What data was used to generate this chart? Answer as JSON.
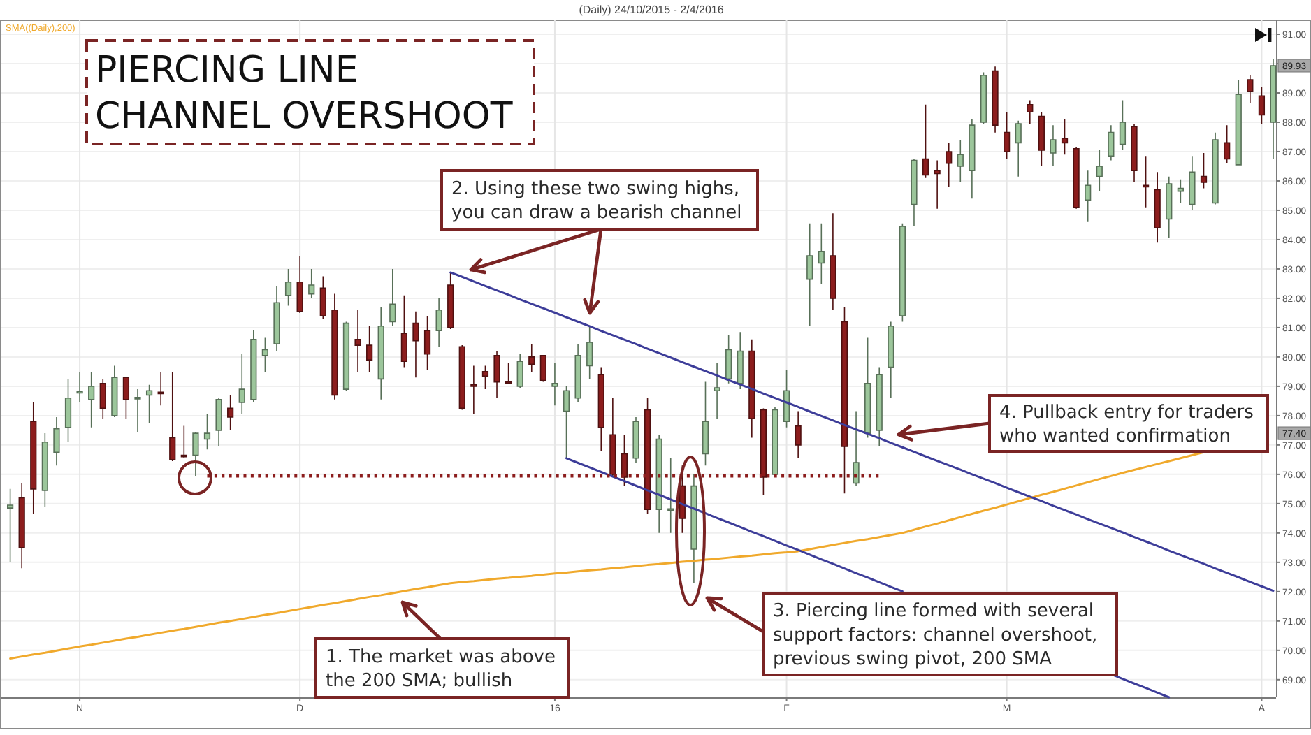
{
  "chart_data": {
    "type": "candlestick",
    "title": "PIERCING LINE\nCHANNEL OVERSHOOT",
    "subtitle": "(Daily) 24/10/2015 - 2/4/2016",
    "categories": [
      null,
      null,
      null,
      null,
      null,
      null,
      "N",
      null,
      null,
      null,
      null,
      null,
      null,
      null,
      null,
      null,
      null,
      null,
      null,
      null,
      null,
      null,
      null,
      null,
      null,
      "D",
      null,
      null,
      null,
      null,
      null,
      null,
      null,
      null,
      null,
      null,
      null,
      null,
      null,
      null,
      null,
      null,
      null,
      null,
      null,
      null,
      null,
      "16",
      null,
      null,
      null,
      null,
      null,
      null,
      null,
      null,
      null,
      null,
      null,
      null,
      null,
      null,
      null,
      null,
      null,
      null,
      null,
      "F",
      null,
      null,
      null,
      null,
      null,
      null,
      null,
      null,
      null,
      null,
      null,
      null,
      null,
      null,
      null,
      null,
      null,
      null,
      "M",
      null,
      null,
      null,
      null,
      null,
      null,
      null,
      null,
      null,
      null,
      null,
      null,
      null,
      null,
      null,
      null,
      null,
      null,
      null,
      null,
      null,
      "A",
      null
    ],
    "ohlc": [
      [
        74.85,
        75.5,
        73.0,
        74.95
      ],
      [
        75.2,
        75.7,
        72.8,
        73.5
      ],
      [
        77.8,
        78.45,
        74.65,
        75.5
      ],
      [
        75.45,
        77.4,
        74.9,
        77.1
      ],
      [
        76.75,
        77.95,
        76.3,
        77.55
      ],
      [
        77.6,
        79.25,
        77.1,
        78.6
      ],
      [
        78.8,
        79.5,
        78.45,
        78.82
      ],
      [
        78.55,
        79.5,
        77.6,
        79.0
      ],
      [
        79.1,
        79.25,
        77.9,
        78.25
      ],
      [
        78.0,
        79.7,
        77.95,
        79.3
      ],
      [
        79.3,
        79.3,
        77.9,
        78.55
      ],
      [
        78.6,
        78.9,
        77.45,
        78.62
      ],
      [
        78.7,
        79.05,
        77.75,
        78.85
      ],
      [
        78.8,
        79.5,
        78.35,
        78.75
      ],
      [
        77.25,
        79.5,
        76.45,
        76.5
      ],
      [
        76.65,
        77.65,
        76.55,
        76.6
      ],
      [
        76.65,
        77.45,
        75.95,
        77.4
      ],
      [
        77.2,
        78.05,
        76.85,
        77.4
      ],
      [
        77.5,
        78.6,
        76.95,
        78.55
      ],
      [
        78.25,
        78.7,
        77.5,
        77.95
      ],
      [
        78.45,
        80.1,
        78.05,
        78.9
      ],
      [
        78.55,
        80.9,
        78.45,
        80.6
      ],
      [
        80.05,
        80.65,
        79.5,
        80.25
      ],
      [
        80.45,
        82.4,
        80.2,
        81.85
      ],
      [
        82.1,
        83.0,
        81.75,
        82.55
      ],
      [
        82.55,
        83.45,
        81.5,
        81.55
      ],
      [
        82.15,
        83.0,
        82.0,
        82.45
      ],
      [
        82.35,
        82.75,
        81.3,
        81.4
      ],
      [
        81.6,
        82.15,
        78.55,
        78.7
      ],
      [
        78.9,
        81.2,
        78.85,
        81.15
      ],
      [
        80.6,
        81.6,
        79.5,
        80.4
      ],
      [
        80.4,
        81.05,
        79.5,
        79.9
      ],
      [
        79.25,
        81.7,
        78.55,
        81.05
      ],
      [
        81.2,
        83.0,
        81.05,
        81.8
      ],
      [
        80.8,
        82.1,
        79.65,
        79.85
      ],
      [
        81.15,
        81.55,
        79.3,
        80.55
      ],
      [
        80.9,
        81.4,
        79.55,
        80.1
      ],
      [
        80.9,
        82.0,
        80.35,
        81.6
      ],
      [
        82.45,
        82.88,
        80.95,
        81.0
      ],
      [
        80.35,
        80.4,
        78.2,
        78.25
      ],
      [
        79.05,
        79.7,
        78.05,
        79.0
      ],
      [
        79.5,
        79.7,
        78.9,
        79.35
      ],
      [
        80.05,
        80.2,
        78.6,
        79.15
      ],
      [
        79.15,
        79.8,
        79.1,
        79.12
      ],
      [
        79.0,
        80.1,
        78.95,
        79.85
      ],
      [
        80.0,
        80.45,
        79.5,
        79.75
      ],
      [
        80.05,
        80.05,
        79.15,
        79.2
      ],
      [
        79.0,
        79.8,
        78.35,
        79.1
      ],
      [
        78.15,
        79.0,
        76.55,
        78.85
      ],
      [
        78.6,
        80.45,
        78.45,
        80.05
      ],
      [
        79.7,
        81.05,
        79.25,
        80.5
      ],
      [
        79.4,
        79.65,
        76.8,
        77.6
      ],
      [
        77.35,
        78.6,
        75.9,
        76.0
      ],
      [
        76.7,
        77.35,
        75.6,
        75.9
      ],
      [
        76.55,
        77.95,
        76.4,
        77.8
      ],
      [
        78.2,
        78.6,
        74.65,
        74.8
      ],
      [
        74.8,
        77.35,
        74.0,
        77.2
      ],
      [
        74.8,
        76.55,
        74.0,
        74.82
      ],
      [
        75.6,
        76.3,
        74.0,
        74.5
      ],
      [
        73.45,
        76.0,
        72.3,
        75.6
      ],
      [
        76.7,
        79.15,
        76.3,
        77.8
      ],
      [
        78.85,
        79.8,
        77.9,
        78.95
      ],
      [
        79.25,
        80.75,
        79.1,
        80.25
      ],
      [
        79.1,
        80.85,
        78.9,
        80.2
      ],
      [
        80.2,
        80.6,
        77.25,
        77.9
      ],
      [
        78.2,
        78.25,
        75.3,
        75.9
      ],
      [
        76.0,
        78.3,
        75.9,
        78.2
      ],
      [
        77.8,
        79.55,
        77.6,
        78.85
      ],
      [
        77.65,
        78.15,
        76.55,
        77.0
      ],
      [
        82.65,
        84.55,
        81.05,
        83.45
      ],
      [
        83.2,
        84.55,
        82.5,
        83.6
      ],
      [
        83.45,
        84.9,
        81.6,
        82.0
      ],
      [
        81.2,
        81.7,
        75.35,
        76.95
      ],
      [
        75.7,
        78.15,
        75.6,
        76.4
      ],
      [
        77.4,
        80.65,
        77.25,
        79.1
      ],
      [
        77.5,
        79.65,
        76.95,
        79.4
      ],
      [
        79.65,
        81.2,
        78.6,
        81.05
      ],
      [
        81.4,
        84.55,
        81.2,
        84.45
      ],
      [
        85.2,
        86.75,
        84.45,
        86.7
      ],
      [
        86.75,
        88.6,
        86.1,
        86.2
      ],
      [
        86.35,
        86.7,
        85.05,
        86.25
      ],
      [
        87.0,
        87.3,
        85.8,
        86.6
      ],
      [
        86.5,
        87.4,
        85.95,
        86.9
      ],
      [
        86.35,
        88.1,
        85.4,
        87.9
      ],
      [
        88.0,
        89.7,
        87.95,
        89.6
      ],
      [
        89.75,
        89.9,
        87.65,
        87.9
      ],
      [
        87.65,
        88.35,
        86.75,
        87.0
      ],
      [
        87.3,
        88.05,
        86.15,
        87.95
      ],
      [
        88.6,
        88.75,
        87.95,
        88.35
      ],
      [
        88.2,
        88.35,
        86.5,
        87.05
      ],
      [
        86.95,
        87.9,
        86.5,
        87.4
      ],
      [
        87.45,
        88.1,
        86.9,
        87.3
      ],
      [
        87.1,
        87.15,
        85.05,
        85.1
      ],
      [
        85.35,
        86.35,
        84.6,
        85.85
      ],
      [
        86.15,
        87.05,
        85.65,
        86.5
      ],
      [
        86.85,
        87.9,
        86.7,
        87.65
      ],
      [
        87.25,
        88.75,
        87.05,
        88.0
      ],
      [
        87.85,
        87.95,
        85.95,
        86.35
      ],
      [
        85.85,
        86.85,
        85.1,
        85.8
      ],
      [
        85.7,
        86.3,
        83.9,
        84.4
      ],
      [
        84.7,
        86.15,
        84.05,
        85.9
      ],
      [
        85.65,
        86.05,
        85.25,
        85.75
      ],
      [
        85.2,
        86.85,
        85.0,
        86.3
      ],
      [
        86.15,
        86.95,
        85.75,
        85.95
      ],
      [
        85.25,
        87.65,
        85.2,
        87.4
      ],
      [
        87.3,
        87.9,
        86.6,
        86.75
      ],
      [
        86.55,
        89.45,
        86.55,
        88.95
      ],
      [
        89.45,
        89.6,
        88.65,
        89.05
      ],
      [
        88.9,
        89.2,
        87.95,
        88.25
      ],
      [
        88.0,
        90.15,
        86.75,
        89.93
      ]
    ],
    "colors": [
      "#9cc69b",
      "#8c1d1d",
      "#8c1d1d",
      "#9cc69b",
      "#9cc69b",
      "#9cc69b",
      "#9cc69b",
      "#9cc69b",
      "#8c1d1d",
      "#9cc69b",
      "#8c1d1d",
      "#9cc69b",
      "#9cc69b",
      "#8c1d1d",
      "#8c1d1d",
      "#8c1d1d",
      "#9cc69b",
      "#9cc69b",
      "#9cc69b",
      "#8c1d1d",
      "#9cc69b",
      "#9cc69b",
      "#9cc69b",
      "#9cc69b",
      "#9cc69b",
      "#8c1d1d",
      "#9cc69b",
      "#8c1d1d",
      "#8c1d1d",
      "#9cc69b",
      "#8c1d1d",
      "#8c1d1d",
      "#9cc69b",
      "#9cc69b",
      "#8c1d1d",
      "#8c1d1d",
      "#8c1d1d",
      "#9cc69b",
      "#8c1d1d",
      "#8c1d1d",
      "#8c1d1d",
      "#8c1d1d",
      "#8c1d1d",
      "#8c1d1d",
      "#9cc69b",
      "#8c1d1d",
      "#8c1d1d",
      "#9cc69b",
      "#9cc69b",
      "#9cc69b",
      "#9cc69b",
      "#8c1d1d",
      "#8c1d1d",
      "#8c1d1d",
      "#9cc69b",
      "#8c1d1d",
      "#9cc69b",
      "#9cc69b",
      "#8c1d1d",
      "#9cc69b",
      "#9cc69b",
      "#9cc69b",
      "#9cc69b",
      "#9cc69b",
      "#8c1d1d",
      "#8c1d1d",
      "#9cc69b",
      "#9cc69b",
      "#8c1d1d",
      "#9cc69b",
      "#9cc69b",
      "#8c1d1d",
      "#8c1d1d",
      "#9cc69b",
      "#9cc69b",
      "#9cc69b",
      "#9cc69b",
      "#9cc69b",
      "#9cc69b",
      "#8c1d1d",
      "#8c1d1d",
      "#8c1d1d",
      "#9cc69b",
      "#9cc69b",
      "#9cc69b",
      "#8c1d1d",
      "#8c1d1d",
      "#9cc69b",
      "#8c1d1d",
      "#8c1d1d",
      "#9cc69b",
      "#8c1d1d",
      "#8c1d1d",
      "#9cc69b",
      "#9cc69b",
      "#9cc69b",
      "#9cc69b",
      "#8c1d1d",
      "#8c1d1d",
      "#8c1d1d",
      "#9cc69b",
      "#9cc69b",
      "#9cc69b",
      "#8c1d1d",
      "#9cc69b",
      "#8c1d1d",
      "#9cc69b",
      "#8c1d1d",
      "#8c1d1d",
      "#9cc69b"
    ],
    "series": [
      {
        "name": "SMA((Daily),200)",
        "type": "line",
        "color": "#f0a92c",
        "values": [
          69.72,
          69.79,
          69.86,
          69.92,
          69.99,
          70.06,
          70.13,
          70.19,
          70.26,
          70.33,
          70.4,
          70.46,
          70.53,
          70.6,
          70.67,
          70.73,
          70.8,
          70.87,
          70.94,
          71.0,
          71.07,
          71.14,
          71.21,
          71.27,
          71.34,
          71.41,
          71.48,
          71.55,
          71.61,
          71.68,
          71.75,
          71.82,
          71.88,
          71.95,
          72.02,
          72.09,
          72.15,
          72.22,
          72.29,
          72.33,
          72.36,
          72.4,
          72.44,
          72.47,
          72.51,
          72.54,
          72.58,
          72.62,
          72.65,
          72.69,
          72.73,
          72.76,
          72.8,
          72.83,
          72.87,
          72.91,
          72.94,
          72.98,
          73.02,
          73.05,
          73.09,
          73.12,
          73.16,
          73.2,
          73.23,
          73.27,
          73.31,
          73.34,
          73.38,
          73.45,
          73.52,
          73.59,
          73.66,
          73.73,
          73.79,
          73.86,
          73.93,
          74.0,
          74.11,
          74.22,
          74.32,
          74.43,
          74.54,
          74.65,
          74.76,
          74.86,
          74.97,
          75.08,
          75.19,
          75.3,
          75.4,
          75.51,
          75.62,
          75.73,
          75.84,
          75.94,
          76.05,
          76.15,
          76.25,
          76.35,
          76.45,
          76.55,
          76.65,
          76.75,
          null,
          null,
          null,
          null,
          null,
          null
        ]
      },
      {
        "type": "line",
        "color": "#3d3d99",
        "values": [
          null,
          null,
          null,
          null,
          null,
          null,
          null,
          null,
          null,
          null,
          null,
          null,
          null,
          null,
          null,
          null,
          null,
          null,
          null,
          null,
          null,
          null,
          null,
          null,
          null,
          null,
          null,
          null,
          null,
          null,
          null,
          null,
          null,
          null,
          null,
          null,
          null,
          null,
          82.88,
          82.73,
          82.57,
          82.42,
          82.27,
          82.12,
          81.96,
          81.81,
          81.66,
          81.51,
          81.35,
          81.2,
          81.05,
          80.89,
          80.74,
          80.59,
          80.44,
          80.28,
          80.13,
          79.98,
          79.82,
          79.67,
          79.52,
          79.37,
          79.21,
          79.06,
          78.91,
          78.75,
          78.6,
          78.45,
          78.3,
          78.14,
          77.99,
          77.84,
          77.68,
          77.53,
          77.38,
          77.23,
          77.07,
          76.92,
          76.77,
          76.61,
          76.46,
          76.31,
          76.16,
          76.0,
          75.85,
          75.7,
          75.54,
          75.39,
          75.24,
          75.09,
          74.93,
          74.78,
          74.63,
          74.47,
          74.32,
          74.17,
          74.02,
          73.86,
          73.71,
          73.56,
          73.4,
          73.25,
          73.1,
          72.95,
          72.79,
          72.64,
          72.49,
          72.33,
          72.18,
          72.03
        ]
      },
      {
        "type": "line",
        "color": "#3d3d99",
        "values": [
          null,
          null,
          null,
          null,
          null,
          null,
          null,
          null,
          null,
          null,
          null,
          null,
          null,
          null,
          null,
          null,
          null,
          null,
          null,
          null,
          null,
          null,
          null,
          null,
          null,
          null,
          null,
          null,
          null,
          null,
          null,
          null,
          null,
          null,
          null,
          null,
          null,
          null,
          null,
          null,
          null,
          null,
          null,
          null,
          null,
          null,
          null,
          null,
          76.55,
          76.39,
          76.24,
          76.08,
          75.92,
          75.77,
          75.61,
          75.45,
          75.3,
          75.14,
          74.98,
          74.83,
          74.67,
          74.51,
          74.36,
          74.2,
          74.04,
          73.89,
          73.73,
          73.57,
          73.42,
          73.26,
          73.1,
          72.95,
          72.79,
          72.63,
          72.48,
          72.32,
          72.16,
          72.01,
          null,
          null,
          null,
          null,
          null,
          null,
          null,
          null,
          null,
          null,
          null,
          null,
          null,
          null,
          null,
          null,
          null,
          69.19,
          69.03,
          68.87,
          68.72,
          68.56,
          68.4,
          null,
          null,
          null,
          null,
          null,
          null,
          null,
          null,
          null
        ]
      },
      {
        "type": "line",
        "color": "#8c1d1d",
        "line_style": "dotted",
        "values": [
          null,
          null,
          null,
          null,
          null,
          null,
          null,
          null,
          null,
          null,
          null,
          null,
          null,
          null,
          null,
          null,
          null,
          75.95,
          75.95,
          75.95,
          75.95,
          75.95,
          75.95,
          75.95,
          75.95,
          75.95,
          75.95,
          75.95,
          75.95,
          75.95,
          75.95,
          75.95,
          75.95,
          75.95,
          75.95,
          75.95,
          75.95,
          75.95,
          75.95,
          75.95,
          75.95,
          75.95,
          75.95,
          75.95,
          75.95,
          75.95,
          75.95,
          75.95,
          75.95,
          75.95,
          75.95,
          75.95,
          75.95,
          75.95,
          75.95,
          75.95,
          75.95,
          75.95,
          75.95,
          75.95,
          75.95,
          75.95,
          75.95,
          75.95,
          75.95,
          75.95,
          75.95,
          75.95,
          75.95,
          75.95,
          75.95,
          75.95,
          75.95,
          75.95,
          75.95,
          75.95,
          null,
          null,
          null,
          null,
          null,
          null,
          null,
          null,
          null,
          null,
          null,
          null,
          null,
          null,
          null,
          null,
          null,
          null,
          null,
          null,
          null,
          null,
          null,
          null,
          null,
          null,
          null,
          null,
          null,
          null,
          null,
          null,
          null,
          null
        ]
      }
    ],
    "ylim": [
      68.4,
      91.5
    ],
    "yticks": [
      {
        "value": 69,
        "label": "69.00"
      },
      {
        "value": 70,
        "label": "70.00"
      },
      {
        "value": 71,
        "label": "71.00"
      },
      {
        "value": 72,
        "label": "72.00"
      },
      {
        "value": 73,
        "label": "73.00"
      },
      {
        "value": 74,
        "label": "74.00"
      },
      {
        "value": 75,
        "label": "75.00"
      },
      {
        "value": 76,
        "label": "76.00"
      },
      {
        "value": 77,
        "label": "77.00"
      },
      {
        "value": 78,
        "label": "78.00"
      },
      {
        "value": 79,
        "label": "79.00"
      },
      {
        "value": 80,
        "label": "80.00"
      },
      {
        "value": 81,
        "label": "81.00"
      },
      {
        "value": 82,
        "label": "82.00"
      },
      {
        "value": 83,
        "label": "83.00"
      },
      {
        "value": 84,
        "label": "84.00"
      },
      {
        "value": 85,
        "label": "85.00"
      },
      {
        "value": 86,
        "label": "86.00"
      },
      {
        "value": 87,
        "label": "87.00"
      },
      {
        "value": 88,
        "label": "88.00"
      },
      {
        "value": 89,
        "label": "89.00"
      },
      {
        "value": 90,
        "label": null
      },
      {
        "value": 91,
        "label": "91.00"
      }
    ],
    "grid": true,
    "legend": "top left",
    "annotations": [
      "1. The market was above\nthe 200 SMA; bullish",
      "2. Using these two swing highs,\nyou can draw a bearish channel",
      "3. Piercing line formed with several\nsupport factors: channel overshoot,\nprevious swing pivot, 200 SMA",
      "4. Pullback entry for traders\nwho wanted confirmation",
      {
        "text": "89.93",
        "y": 89.93
      },
      {
        "text": "77.40",
        "y": 77.4
      }
    ]
  }
}
